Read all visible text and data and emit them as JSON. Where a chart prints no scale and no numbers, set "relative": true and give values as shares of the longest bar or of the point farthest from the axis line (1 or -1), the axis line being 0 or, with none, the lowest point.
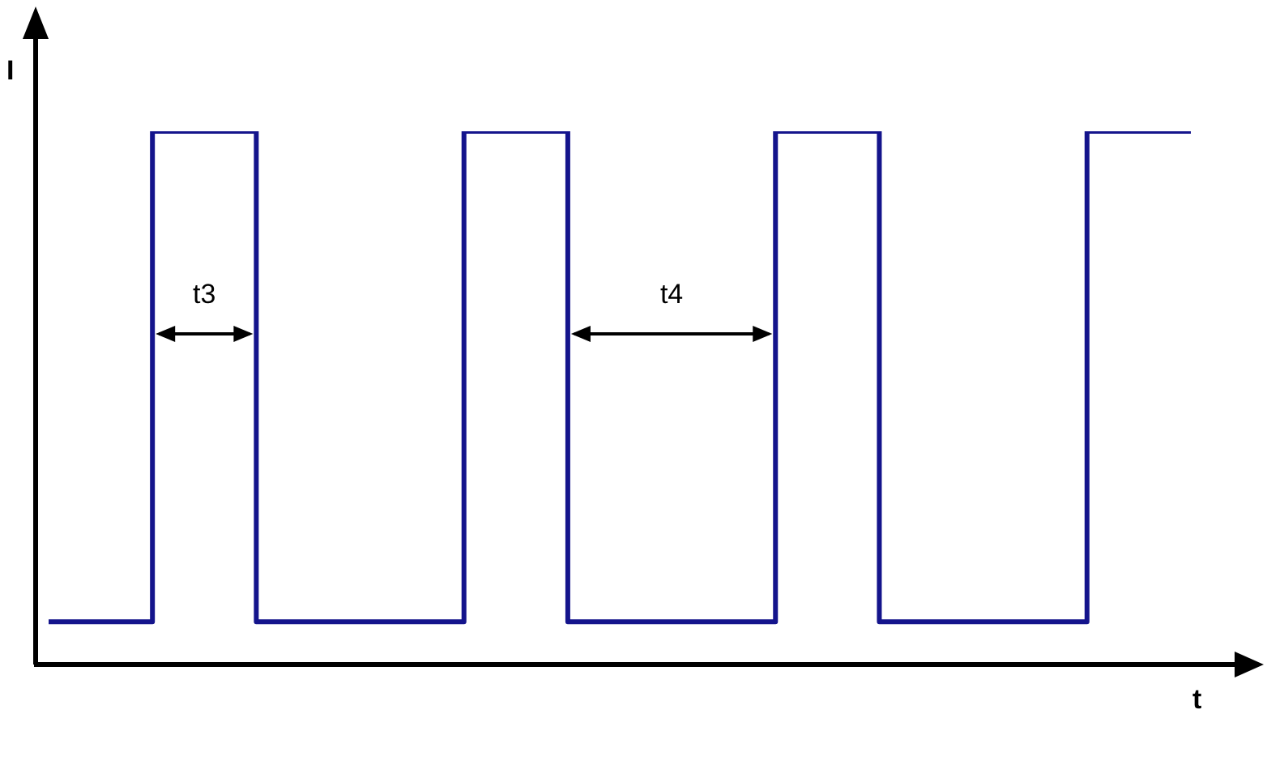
{
  "chart_data": {
    "type": "step",
    "relative": true,
    "xlabel": "t",
    "ylabel": "I",
    "categories": [
      null,
      null,
      null,
      null,
      null,
      null,
      null,
      null,
      null,
      null,
      null,
      null
    ],
    "series": [
      {
        "color": "#14148c",
        "values": [
          0.08,
          1,
          0.08,
          0.08,
          1,
          0.08,
          0.08,
          1,
          0.08,
          0.08,
          1,
          1
        ]
      }
    ],
    "annotations": [
      "t3",
      "t4"
    ],
    "grid": false,
    "legend": false,
    "marker": "none",
    "line_style": "solid"
  }
}
